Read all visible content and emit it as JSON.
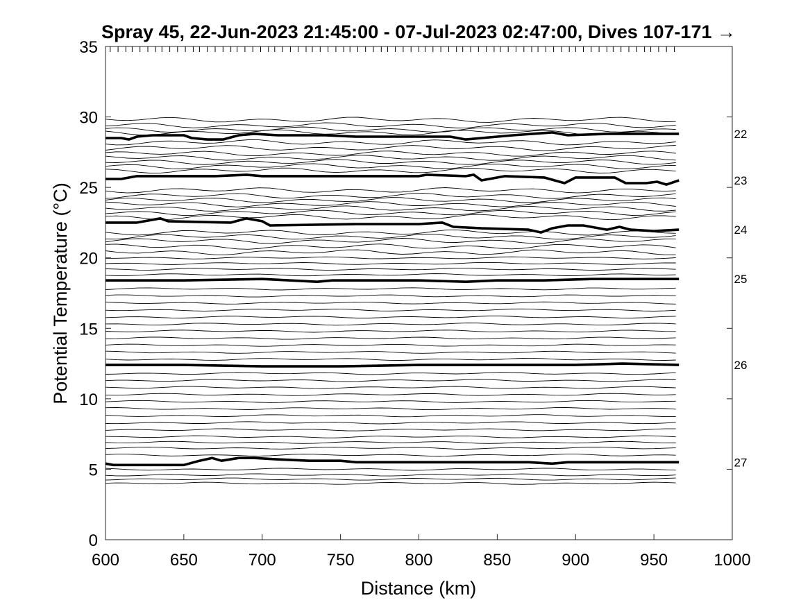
{
  "chart_data": {
    "type": "line",
    "title": "Spray 45, 22-Jun-2023 21:45:00 - 07-Jul-2023 02:47:00, Dives 107-171 →",
    "xlabel": "Distance (km)",
    "ylabel": "Potential Temperature (°C)",
    "xlim": [
      600,
      1000
    ],
    "ylim": [
      0,
      35
    ],
    "xticks": [
      600,
      650,
      700,
      750,
      800,
      850,
      900,
      950,
      1000
    ],
    "yticks": [
      0,
      5,
      10,
      15,
      20,
      25,
      30,
      35
    ],
    "x_range_data": [
      600,
      966
    ],
    "dive_tick_distances": [
      603,
      608,
      613,
      617,
      622,
      627,
      632,
      636,
      641,
      646,
      651,
      656,
      660,
      665,
      670,
      675,
      680,
      684,
      689,
      694,
      699,
      704,
      708,
      713,
      718,
      723,
      728,
      732,
      737,
      742,
      747,
      752,
      756,
      761,
      766,
      771,
      776,
      780,
      785,
      790,
      795,
      800,
      804,
      809,
      814,
      819,
      824,
      828,
      833,
      838,
      843,
      848,
      852,
      857,
      862,
      867,
      872,
      876,
      881,
      886,
      891,
      896,
      900,
      905,
      910,
      915,
      920,
      924,
      929,
      934,
      939,
      944,
      948,
      953,
      958,
      963
    ],
    "thin_isoline_levels": [
      29.8,
      29.4,
      29.1,
      28.9,
      28.2,
      27.8,
      27.4,
      27.1,
      26.8,
      26.5,
      26.2,
      24.8,
      24.4,
      24.1,
      23.8,
      23.5,
      23.2,
      22.9,
      21.8,
      21.5,
      21.2,
      20.8,
      20.4,
      20.0,
      19.6,
      19.2,
      18.8,
      17.8,
      17.3,
      16.8,
      16.3,
      15.8,
      15.3,
      14.8,
      14.3,
      13.8,
      13.3,
      12.8,
      11.8,
      11.3,
      10.8,
      10.3,
      9.8,
      9.3,
      8.8,
      8.3,
      7.8,
      7.3,
      6.9,
      6.5,
      6.0,
      5.0,
      4.6,
      4.3,
      4.0
    ],
    "density_contours": [
      {
        "label": "22",
        "points": [
          [
            600,
            28.5
          ],
          [
            610,
            28.5
          ],
          [
            615,
            28.4
          ],
          [
            620,
            28.6
          ],
          [
            630,
            28.7
          ],
          [
            650,
            28.7
          ],
          [
            655,
            28.5
          ],
          [
            665,
            28.4
          ],
          [
            675,
            28.4
          ],
          [
            685,
            28.7
          ],
          [
            695,
            28.8
          ],
          [
            710,
            28.7
          ],
          [
            740,
            28.7
          ],
          [
            760,
            28.6
          ],
          [
            800,
            28.6
          ],
          [
            820,
            28.6
          ],
          [
            830,
            28.4
          ],
          [
            840,
            28.5
          ],
          [
            860,
            28.7
          ],
          [
            885,
            28.9
          ],
          [
            895,
            28.7
          ],
          [
            920,
            28.8
          ],
          [
            966,
            28.8
          ]
        ]
      },
      {
        "label": "23",
        "points": [
          [
            600,
            25.6
          ],
          [
            610,
            25.6
          ],
          [
            620,
            25.8
          ],
          [
            650,
            25.8
          ],
          [
            670,
            25.8
          ],
          [
            690,
            25.9
          ],
          [
            700,
            25.8
          ],
          [
            760,
            25.8
          ],
          [
            800,
            25.8
          ],
          [
            805,
            25.9
          ],
          [
            830,
            25.8
          ],
          [
            835,
            25.9
          ],
          [
            840,
            25.5
          ],
          [
            855,
            25.8
          ],
          [
            880,
            25.7
          ],
          [
            893,
            25.3
          ],
          [
            900,
            25.7
          ],
          [
            925,
            25.7
          ],
          [
            932,
            25.3
          ],
          [
            945,
            25.3
          ],
          [
            952,
            25.4
          ],
          [
            958,
            25.2
          ],
          [
            966,
            25.5
          ]
        ]
      },
      {
        "label": "24",
        "points": [
          [
            600,
            22.5
          ],
          [
            620,
            22.5
          ],
          [
            635,
            22.8
          ],
          [
            640,
            22.6
          ],
          [
            680,
            22.5
          ],
          [
            690,
            22.8
          ],
          [
            700,
            22.6
          ],
          [
            705,
            22.3
          ],
          [
            760,
            22.4
          ],
          [
            800,
            22.4
          ],
          [
            815,
            22.5
          ],
          [
            822,
            22.2
          ],
          [
            840,
            22.1
          ],
          [
            870,
            22.0
          ],
          [
            878,
            21.8
          ],
          [
            885,
            22.1
          ],
          [
            895,
            22.3
          ],
          [
            905,
            22.3
          ],
          [
            920,
            22.0
          ],
          [
            928,
            22.2
          ],
          [
            935,
            22.0
          ],
          [
            950,
            21.9
          ],
          [
            966,
            22.0
          ]
        ]
      },
      {
        "label": "25",
        "points": [
          [
            600,
            18.4
          ],
          [
            620,
            18.4
          ],
          [
            650,
            18.4
          ],
          [
            700,
            18.5
          ],
          [
            735,
            18.3
          ],
          [
            745,
            18.4
          ],
          [
            800,
            18.4
          ],
          [
            830,
            18.3
          ],
          [
            850,
            18.4
          ],
          [
            880,
            18.4
          ],
          [
            910,
            18.5
          ],
          [
            966,
            18.5
          ]
        ]
      },
      {
        "label": "26",
        "points": [
          [
            600,
            12.4
          ],
          [
            650,
            12.4
          ],
          [
            700,
            12.3
          ],
          [
            750,
            12.3
          ],
          [
            800,
            12.4
          ],
          [
            850,
            12.4
          ],
          [
            900,
            12.4
          ],
          [
            930,
            12.5
          ],
          [
            966,
            12.4
          ]
        ]
      },
      {
        "label": "27",
        "points": [
          [
            600,
            5.4
          ],
          [
            605,
            5.3
          ],
          [
            650,
            5.3
          ],
          [
            660,
            5.6
          ],
          [
            668,
            5.8
          ],
          [
            674,
            5.6
          ],
          [
            685,
            5.8
          ],
          [
            695,
            5.8
          ],
          [
            710,
            5.7
          ],
          [
            730,
            5.6
          ],
          [
            750,
            5.6
          ],
          [
            760,
            5.5
          ],
          [
            800,
            5.5
          ],
          [
            870,
            5.5
          ],
          [
            885,
            5.4
          ],
          [
            895,
            5.5
          ],
          [
            966,
            5.5
          ]
        ]
      }
    ],
    "grid": false,
    "legend": "none"
  }
}
